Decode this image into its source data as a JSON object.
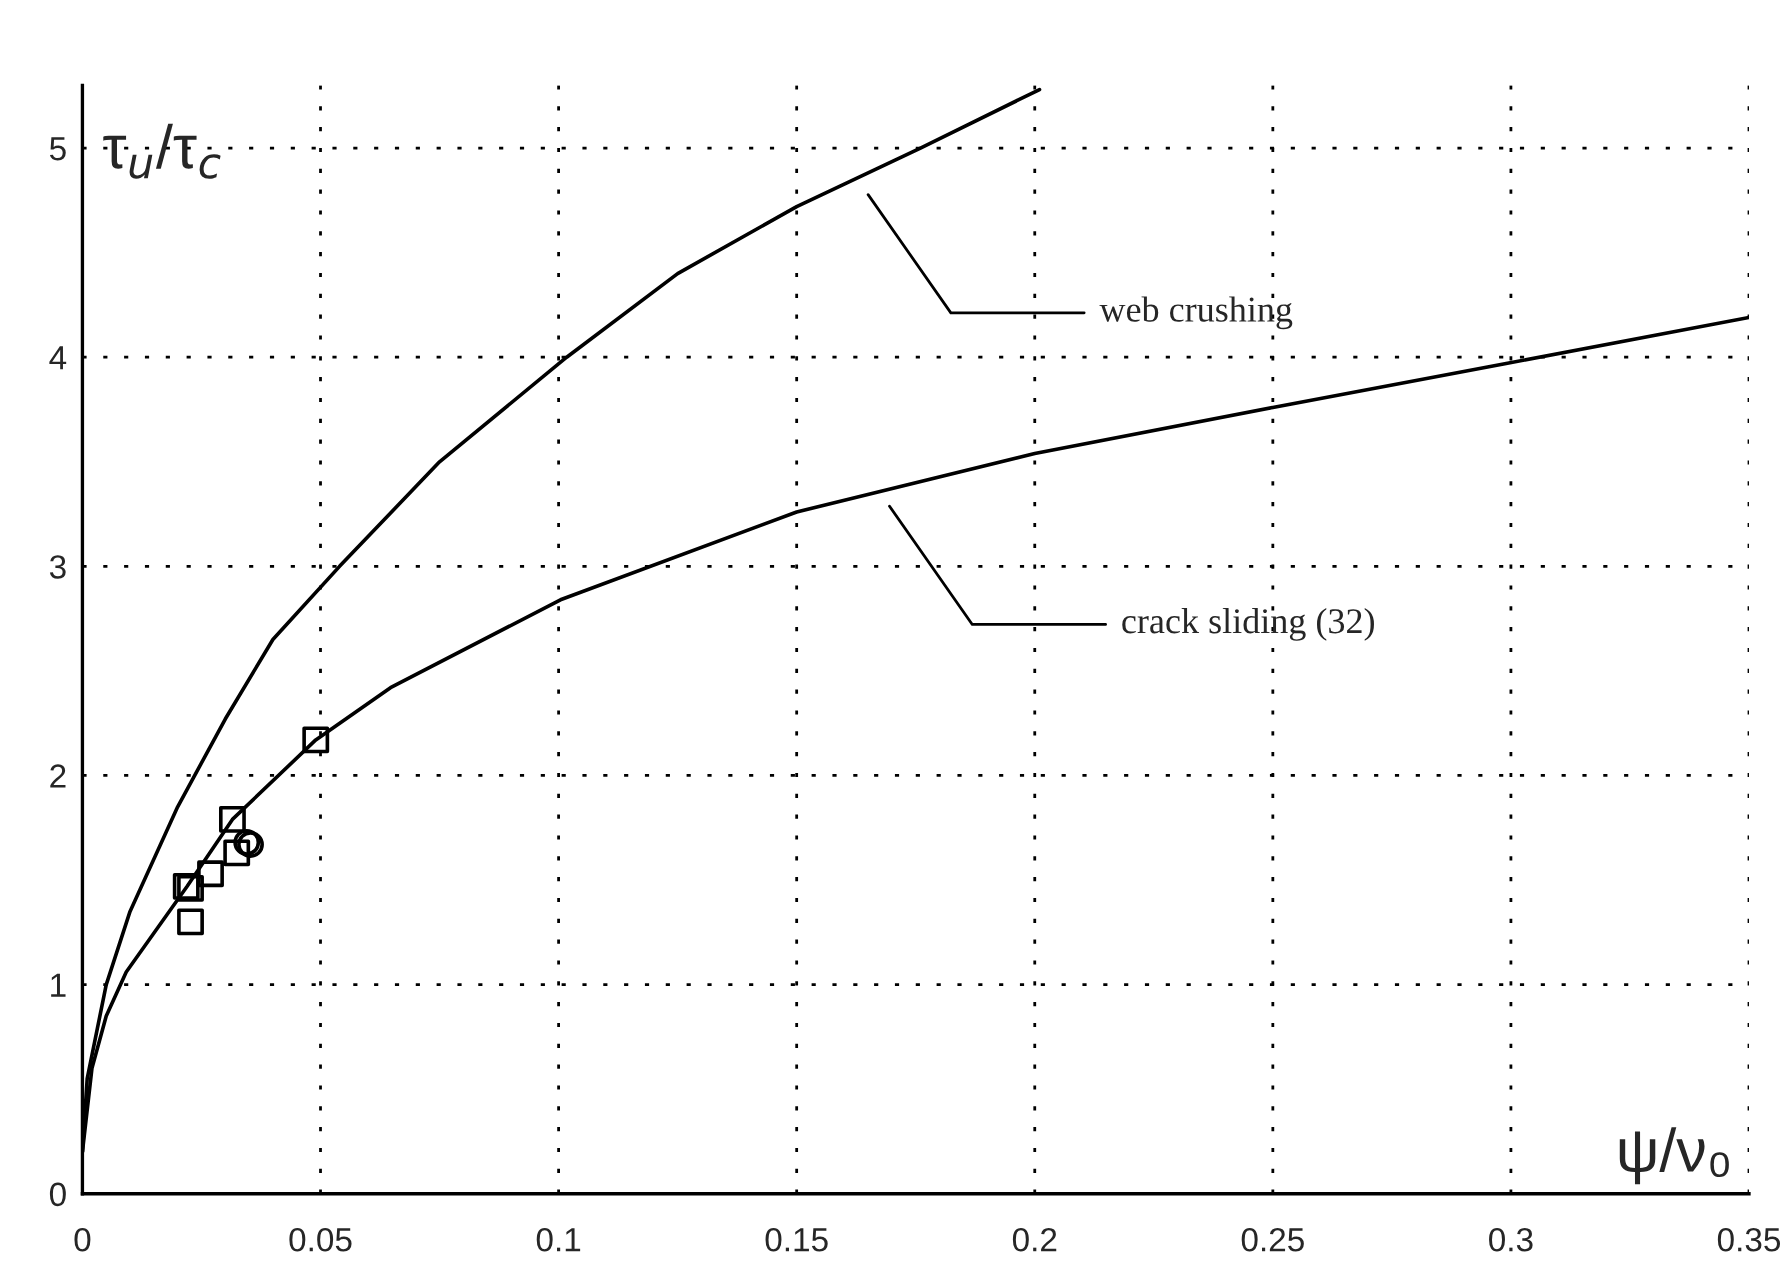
{
  "chart_data": {
    "type": "line",
    "xlabel": "ψ/ν₀",
    "ylabel": "τ$_{u}$/τ$_{c}$",
    "xlim": [
      0,
      0.35
    ],
    "ylim": [
      0,
      5.3
    ],
    "xticks": [
      0,
      0.05,
      0.1,
      0.15,
      0.2,
      0.25,
      0.3,
      0.35
    ],
    "yticks": [
      0,
      1,
      2,
      3,
      4,
      5
    ],
    "grid": true,
    "series": [
      {
        "color": "#000000",
        "marker": "none",
        "line_style": "solid",
        "x": [
          0,
          0.001,
          0.005,
          0.01,
          0.02,
          0.03,
          0.04,
          0.054,
          0.075,
          0.1017,
          0.125,
          0.15,
          0.176,
          0.201
        ],
        "values": [
          0.2,
          0.55,
          1.0,
          1.35,
          1.85,
          2.27,
          2.65,
          3.0,
          3.5,
          4.0,
          4.4,
          4.72,
          5.0,
          5.28
        ]
      },
      {
        "color": "#000000",
        "marker": "none",
        "line_style": "solid",
        "x": [
          0,
          0.002,
          0.005,
          0.0092,
          0.022,
          0.0315,
          0.049,
          0.0647,
          0.1004,
          0.15,
          0.2,
          0.25,
          0.299,
          0.35
        ],
        "values": [
          0.2,
          0.6,
          0.85,
          1.06,
          1.47,
          1.79,
          2.17,
          2.42,
          2.84,
          3.26,
          3.54,
          3.76,
          3.97,
          4.19
        ]
      },
      {
        "type": "scatter",
        "color": "#000000",
        "marker": "square",
        "x": [
          0.049,
          0.0315,
          0.0218,
          0.0227,
          0.0269,
          0.0227,
          0.0324
        ],
        "values": [
          2.17,
          1.79,
          1.47,
          1.46,
          1.53,
          1.3,
          1.63
        ]
      },
      {
        "type": "scatter",
        "color": "#000000",
        "marker": "circle",
        "x": [
          0.0345,
          0.0353
        ],
        "values": [
          1.68,
          1.67
        ]
      }
    ],
    "annotations": [
      {
        "text": "web crushing",
        "x": 0.164,
        "y": 4.81
      },
      {
        "text": "crack sliding (32)",
        "x": 0.1685,
        "y": 3.32
      }
    ]
  }
}
